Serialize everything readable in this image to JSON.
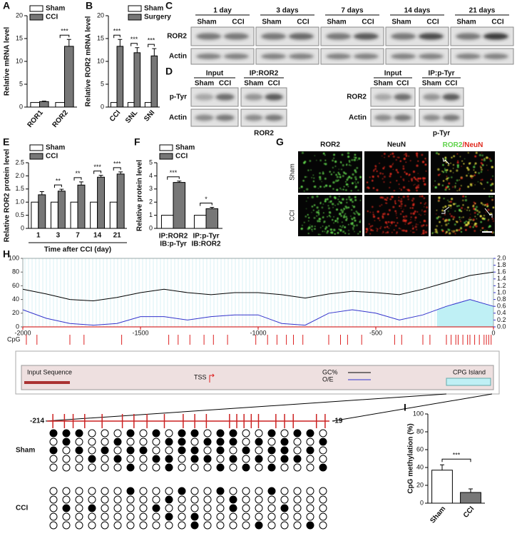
{
  "chart_data": [
    {
      "type": "bar",
      "panel": "A",
      "ylabel": "Relative mRNA level",
      "categories": [
        "ROR1",
        "ROR2"
      ],
      "series": [
        {
          "name": "Sham",
          "color": "#ffffff",
          "values": [
            1,
            1
          ]
        },
        {
          "name": "CCI",
          "color": "#777777",
          "values": [
            1.2,
            13.3
          ],
          "errors": [
            0.1,
            1.5
          ]
        }
      ],
      "ylim": [
        0,
        20
      ],
      "yticks": [
        0,
        5,
        10,
        15,
        20
      ],
      "significance": [
        null,
        "***"
      ]
    },
    {
      "type": "bar",
      "panel": "B",
      "ylabel": "Relative ROR2 mRNA level",
      "categories": [
        "CCI",
        "SNL",
        "SNI"
      ],
      "series": [
        {
          "name": "Sham",
          "color": "#ffffff",
          "values": [
            1,
            1,
            1
          ]
        },
        {
          "name": "Surgery",
          "color": "#777777",
          "values": [
            13.3,
            11.9,
            11.2
          ],
          "errors": [
            1.5,
            1.1,
            1.6
          ]
        }
      ],
      "ylim": [
        0,
        20
      ],
      "yticks": [
        0,
        5,
        10,
        15,
        20
      ],
      "significance": [
        "***",
        "***",
        "***"
      ]
    },
    {
      "type": "bar",
      "panel": "E",
      "ylabel": "Relative ROR2 protein level",
      "xlabel": "Time after CCI (day)",
      "categories": [
        "1",
        "3",
        "7",
        "14",
        "21"
      ],
      "series": [
        {
          "name": "Sham",
          "color": "#ffffff",
          "values": [
            1,
            1,
            1,
            1,
            1
          ]
        },
        {
          "name": "CCI",
          "color": "#777777",
          "values": [
            1.28,
            1.42,
            1.65,
            1.95,
            2.07
          ],
          "errors": [
            0.12,
            0.07,
            0.12,
            0.07,
            0.08
          ]
        }
      ],
      "ylim": [
        0,
        2.5
      ],
      "yticks": [
        0,
        0.5,
        {
          "value": 1,
          "label": "1.0"
        },
        1.5,
        {
          "value": 2,
          "label": "2.0"
        },
        2.5
      ],
      "significance": [
        null,
        "**",
        "**",
        "***",
        "***"
      ]
    },
    {
      "type": "bar",
      "panel": "F",
      "ylabel": "Relative protein level",
      "categories": [
        [
          "IP:ROR2",
          "IB:p-Tyr"
        ],
        [
          "IP:p-Tyr",
          "IB:ROR2"
        ]
      ],
      "series": [
        {
          "name": "Sham",
          "color": "#ffffff",
          "values": [
            1,
            1
          ]
        },
        {
          "name": "CCI",
          "color": "#777777",
          "values": [
            3.5,
            1.5
          ],
          "errors": [
            0.1,
            0.1
          ]
        }
      ],
      "ylim": [
        0,
        5
      ],
      "yticks": [
        0,
        1,
        2,
        3,
        4,
        5
      ],
      "significance": [
        "***",
        "*"
      ]
    },
    {
      "type": "bar",
      "panel": "I",
      "ylabel": "CpG methylation (%)",
      "categories": [
        "Sham",
        "CCI"
      ],
      "values": [
        37,
        12
      ],
      "errors": [
        6,
        4
      ],
      "colors": [
        "#ffffff",
        "#777777"
      ],
      "ylim": [
        0,
        100
      ],
      "yticks": [
        0,
        20,
        40,
        60,
        80,
        100
      ],
      "significance": "***"
    },
    {
      "type": "line",
      "panel": "H",
      "x": [
        -2000,
        -1900,
        -1800,
        -1700,
        -1600,
        -1500,
        -1400,
        -1300,
        -1200,
        -1100,
        -1000,
        -900,
        -800,
        -700,
        -600,
        -500,
        -400,
        -300,
        -200,
        -100,
        0
      ],
      "series": [
        {
          "name": "GC%",
          "color": "#000000",
          "values": [
            55,
            48,
            40,
            38,
            43,
            50,
            55,
            50,
            47,
            50,
            50,
            47,
            42,
            48,
            52,
            50,
            47,
            55,
            65,
            75,
            80
          ]
        },
        {
          "name": "O/E",
          "color": "#3333cc",
          "axis": "y2",
          "values": [
            0.5,
            0.25,
            0.1,
            0.05,
            0.1,
            0.3,
            0.3,
            0.2,
            0.3,
            0.35,
            0.35,
            0.1,
            0.05,
            0.4,
            0.5,
            0.4,
            0.2,
            0.35,
            0.6,
            0.8,
            0.6
          ]
        }
      ],
      "xlim": [
        -2000,
        0
      ],
      "xticks": [
        -2000,
        -1500,
        -1000,
        -500,
        0
      ],
      "ylim": [
        0,
        100
      ],
      "yticks": [
        0,
        20,
        40,
        60,
        80,
        100
      ],
      "y2lim": [
        0,
        2
      ],
      "y2ticks": [
        {
          "value": 0,
          "label": "0.0"
        },
        0.2,
        0.4,
        0.6,
        0.8,
        {
          "value": 1,
          "label": "1.0"
        },
        1.2,
        1.4,
        1.6,
        1.8,
        {
          "value": 2,
          "label": "2.0"
        }
      ],
      "island": [
        -240,
        0
      ],
      "island_label": "CPG Island",
      "cpg_label": "CpG",
      "cpg_sites": [
        -1985,
        -1940,
        -1800,
        -1740,
        -1580,
        -1380,
        -1340,
        -1290,
        -1230,
        -1190,
        -1130,
        -1010,
        -960,
        -920,
        -880,
        -850,
        -810,
        -700,
        -650,
        -620,
        -560,
        -420,
        -390,
        -300,
        -270,
        -200,
        -180,
        -160,
        -150,
        -130,
        -110,
        -100,
        -80,
        -60,
        -40,
        -30,
        -20,
        -10
      ],
      "input_label": "Input Sequence",
      "tss_label": "TSS"
    }
  ],
  "blots_c": {
    "panel": "C",
    "columns": [
      "1 day",
      "3 days",
      "7 days",
      "14 days",
      "21 days"
    ],
    "lanes": [
      "Sham",
      "CCI"
    ],
    "rows": [
      "ROR2",
      "Actin"
    ]
  },
  "blots_d": {
    "panel": "D",
    "lanes": [
      "Sham",
      "CCI"
    ],
    "sets": [
      {
        "columns": [
          "Input",
          "IP:ROR2"
        ],
        "rows": [
          "p-Tyr",
          "Actin"
        ],
        "footnote": "ROR2"
      },
      {
        "columns": [
          "Input",
          "IP:p-Tyr"
        ],
        "rows": [
          "ROR2",
          "Actin"
        ],
        "footnote": "p-Tyr"
      }
    ]
  },
  "staining": {
    "panel": "G",
    "columns": [
      "ROR2",
      "NeuN"
    ],
    "separator": "/",
    "rows": [
      "Sham",
      "CCI"
    ]
  },
  "methylation": {
    "start": -214,
    "end": -19,
    "sites": [
      -210,
      -202,
      -196,
      -188,
      -176,
      -162,
      -154,
      -145,
      -133,
      -120,
      -112,
      -104,
      -88,
      -83,
      -78,
      -73,
      -68,
      -56,
      -50,
      -44,
      -28,
      -22
    ],
    "groups": [
      {
        "name": "Sham",
        "clones": [
          [
            1,
            1,
            1,
            0,
            0,
            0,
            1,
            0,
            1,
            0,
            1,
            1,
            0,
            1,
            1,
            0,
            0,
            1,
            0,
            1,
            1,
            0
          ],
          [
            0,
            1,
            0,
            0,
            0,
            1,
            0,
            0,
            0,
            1,
            1,
            0,
            1,
            1,
            1,
            0,
            1,
            0,
            1,
            0,
            0,
            1
          ],
          [
            1,
            0,
            1,
            0,
            1,
            0,
            1,
            1,
            0,
            0,
            1,
            1,
            0,
            1,
            0,
            1,
            0,
            1,
            1,
            0,
            1,
            0
          ],
          [
            0,
            0,
            0,
            1,
            0,
            1,
            0,
            0,
            1,
            1,
            0,
            1,
            1,
            0,
            1,
            0,
            1,
            0,
            1,
            1,
            0,
            0
          ],
          [
            0,
            0,
            0,
            0,
            0,
            0,
            1,
            0,
            0,
            1,
            0,
            0,
            0,
            1,
            0,
            1,
            0,
            1,
            0,
            0,
            0,
            1
          ]
        ]
      },
      {
        "name": "CCI",
        "clones": [
          [
            0,
            0,
            0,
            0,
            0,
            0,
            1,
            0,
            0,
            0,
            1,
            0,
            0,
            1,
            0,
            0,
            0,
            1,
            0,
            0,
            0,
            0
          ],
          [
            0,
            0,
            0,
            0,
            0,
            0,
            0,
            0,
            0,
            1,
            0,
            0,
            0,
            0,
            1,
            0,
            0,
            0,
            0,
            0,
            0,
            0
          ],
          [
            0,
            1,
            0,
            1,
            0,
            0,
            0,
            0,
            1,
            0,
            0,
            0,
            0,
            0,
            1,
            0,
            0,
            0,
            1,
            0,
            0,
            0
          ],
          [
            0,
            0,
            0,
            0,
            0,
            0,
            0,
            0,
            0,
            1,
            0,
            1,
            0,
            0,
            0,
            0,
            0,
            0,
            0,
            0,
            0,
            0
          ],
          [
            0,
            0,
            0,
            0,
            0,
            0,
            0,
            0,
            0,
            0,
            0,
            1,
            0,
            0,
            0,
            0,
            1,
            0,
            0,
            0,
            1,
            0
          ]
        ]
      }
    ]
  }
}
